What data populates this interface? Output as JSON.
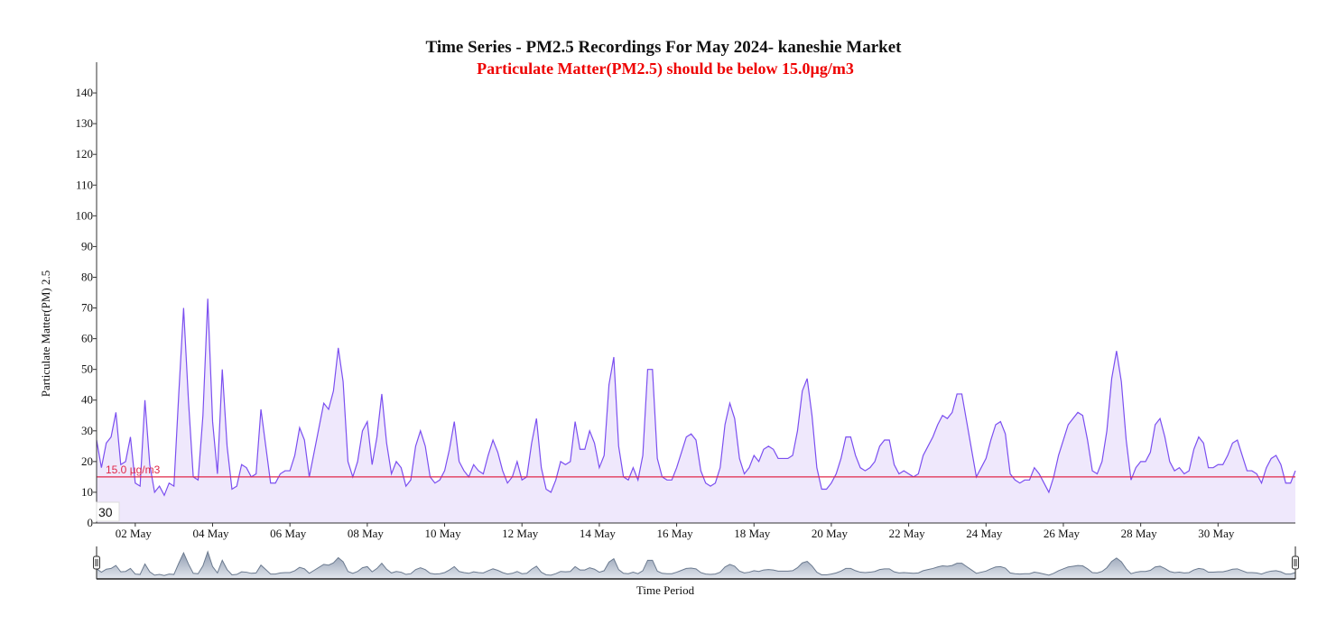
{
  "chart_data": {
    "type": "line",
    "title": "Time Series - PM2.5 Recordings For May 2024- kaneshie Market",
    "subtitle": "Particulate Matter(PM2.5) should be below 15.0µg/m3",
    "y_label": "Particulate Matter(PM) 2.5",
    "x_label": "Time Period",
    "badge": "30",
    "color": "#7b4ff0",
    "fill": "#efe8fc",
    "threshold": {
      "value": 15,
      "label": "15.0 µg/m3",
      "color": "#e0284a"
    },
    "brush": true,
    "grid": false,
    "xlim": [
      1,
      32
    ],
    "ylim": [
      0,
      150
    ],
    "yticks": [
      0,
      10,
      20,
      30,
      40,
      50,
      60,
      70,
      80,
      90,
      100,
      110,
      120,
      130,
      140
    ],
    "xticks": [
      {
        "value": 2,
        "label": "02 May"
      },
      {
        "value": 4,
        "label": "04 May"
      },
      {
        "value": 6,
        "label": "06 May"
      },
      {
        "value": 8,
        "label": "08 May"
      },
      {
        "value": 10,
        "label": "10 May"
      },
      {
        "value": 12,
        "label": "12 May"
      },
      {
        "value": 14,
        "label": "14 May"
      },
      {
        "value": 16,
        "label": "16 May"
      },
      {
        "value": 18,
        "label": "18 May"
      },
      {
        "value": 20,
        "label": "20 May"
      },
      {
        "value": 22,
        "label": "22 May"
      },
      {
        "value": 24,
        "label": "24 May"
      },
      {
        "value": 26,
        "label": "26 May"
      },
      {
        "value": 28,
        "label": "28 May"
      },
      {
        "value": 30,
        "label": "30 May"
      }
    ],
    "x": [
      1,
      1.125,
      1.25,
      1.375,
      1.5,
      1.625,
      1.75,
      1.875,
      2,
      2.125,
      2.25,
      2.375,
      2.5,
      2.625,
      2.75,
      2.875,
      3,
      3.125,
      3.25,
      3.375,
      3.5,
      3.625,
      3.75,
      3.875,
      4,
      4.125,
      4.25,
      4.375,
      4.5,
      4.625,
      4.75,
      4.875,
      5,
      5.125,
      5.25,
      5.375,
      5.5,
      5.625,
      5.75,
      5.875,
      6,
      6.125,
      6.25,
      6.375,
      6.5,
      6.625,
      6.75,
      6.875,
      7,
      7.125,
      7.25,
      7.375,
      7.5,
      7.625,
      7.75,
      7.875,
      8,
      8.125,
      8.25,
      8.375,
      8.5,
      8.625,
      8.75,
      8.875,
      9,
      9.125,
      9.25,
      9.375,
      9.5,
      9.625,
      9.75,
      9.875,
      10,
      10.125,
      10.25,
      10.375,
      10.5,
      10.625,
      10.75,
      10.875,
      11,
      11.125,
      11.25,
      11.375,
      11.5,
      11.625,
      11.75,
      11.875,
      12,
      12.125,
      12.25,
      12.375,
      12.5,
      12.625,
      12.75,
      12.875,
      13,
      13.125,
      13.25,
      13.375,
      13.5,
      13.625,
      13.75,
      13.875,
      14,
      14.125,
      14.25,
      14.375,
      14.5,
      14.625,
      14.75,
      14.875,
      15,
      15.125,
      15.25,
      15.375,
      15.5,
      15.625,
      15.75,
      15.875,
      16,
      16.125,
      16.25,
      16.375,
      16.5,
      16.625,
      16.75,
      16.875,
      17,
      17.125,
      17.25,
      17.375,
      17.5,
      17.625,
      17.75,
      17.875,
      18,
      18.125,
      18.25,
      18.375,
      18.5,
      18.625,
      18.75,
      18.875,
      19,
      19.125,
      19.25,
      19.375,
      19.5,
      19.625,
      19.75,
      19.875,
      20,
      20.125,
      20.25,
      20.375,
      20.5,
      20.625,
      20.75,
      20.875,
      21,
      21.125,
      21.25,
      21.375,
      21.5,
      21.625,
      21.75,
      21.875,
      22,
      22.125,
      22.25,
      22.375,
      22.5,
      22.625,
      22.75,
      22.875,
      23,
      23.125,
      23.25,
      23.375,
      23.5,
      23.625,
      23.75,
      23.875,
      24,
      24.125,
      24.25,
      24.375,
      24.5,
      24.625,
      24.75,
      24.875,
      25,
      25.125,
      25.25,
      25.375,
      25.5,
      25.625,
      25.75,
      25.875,
      26,
      26.125,
      26.25,
      26.375,
      26.5,
      26.625,
      26.75,
      26.875,
      27,
      27.125,
      27.25,
      27.375,
      27.5,
      27.625,
      27.75,
      27.875,
      28,
      28.125,
      28.25,
      28.375,
      28.5,
      28.625,
      28.75,
      28.875,
      29,
      29.125,
      29.25,
      29.375,
      29.5,
      29.625,
      29.75,
      29.875,
      30,
      30.125,
      30.25,
      30.375,
      30.5,
      30.625,
      30.75,
      30.875,
      31,
      31.125,
      31.25,
      31.375,
      31.5,
      31.625,
      31.75,
      31.875,
      32
    ],
    "values": [
      27,
      18,
      26,
      28,
      36,
      19,
      20,
      28,
      13,
      12,
      40,
      19,
      10,
      12,
      9,
      13,
      12,
      42,
      70,
      40,
      15,
      14,
      35,
      73,
      33,
      16,
      50,
      25,
      11,
      12,
      19,
      18,
      15,
      16,
      37,
      25,
      13,
      13,
      16,
      17,
      17,
      22,
      31,
      27,
      15,
      23,
      31,
      39,
      37,
      43,
      57,
      46,
      20,
      15,
      20,
      30,
      33,
      19,
      28,
      42,
      26,
      16,
      20,
      18,
      12,
      14,
      25,
      30,
      25,
      15,
      13,
      14,
      17,
      24,
      33,
      20,
      17,
      15,
      19,
      17,
      16,
      22,
      27,
      23,
      17,
      13,
      15,
      20,
      14,
      15,
      26,
      34,
      18,
      11,
      10,
      14,
      20,
      19,
      20,
      33,
      24,
      24,
      30,
      26,
      18,
      22,
      45,
      54,
      25,
      15,
      14,
      18,
      14,
      22,
      50,
      50,
      21,
      15,
      14,
      14,
      18,
      23,
      28,
      29,
      27,
      17,
      13,
      12,
      13,
      18,
      32,
      39,
      34,
      21,
      16,
      18,
      22,
      20,
      24,
      25,
      24,
      21,
      21,
      21,
      22,
      30,
      43,
      47,
      35,
      18,
      11,
      11,
      13,
      16,
      21,
      28,
      28,
      22,
      18,
      17,
      18,
      20,
      25,
      27,
      27,
      19,
      16,
      17,
      16,
      15,
      16,
      22,
      25,
      28,
      32,
      35,
      34,
      36,
      42,
      42,
      33,
      24,
      15,
      18,
      21,
      27,
      32,
      33,
      29,
      16,
      14,
      13,
      14,
      14,
      18,
      16,
      13,
      10,
      15,
      22,
      27,
      32,
      34,
      36,
      35,
      27,
      17,
      16,
      20,
      30,
      47,
      56,
      46,
      27,
      14,
      18,
      20,
      20,
      23,
      32,
      34,
      28,
      20,
      17,
      18,
      16,
      17,
      24,
      28,
      26,
      18,
      18,
      19,
      19,
      22,
      26,
      27,
      22,
      17,
      17,
      16,
      13,
      18,
      21,
      22,
      19,
      13,
      13,
      17
    ]
  }
}
